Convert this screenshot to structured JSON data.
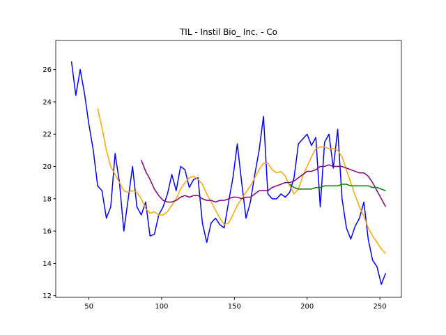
{
  "chart_data": {
    "type": "line",
    "title": "TIL - Instil Bio_ Inc. - Co",
    "x": [
      38,
      41,
      44,
      47,
      50,
      53,
      56,
      59,
      62,
      65,
      68,
      71,
      74,
      77,
      80,
      83,
      86,
      89,
      92,
      95,
      98,
      101,
      104,
      107,
      110,
      113,
      116,
      119,
      122,
      125,
      128,
      131,
      134,
      137,
      140,
      143,
      146,
      149,
      152,
      155,
      158,
      161,
      164,
      167,
      170,
      173,
      176,
      179,
      182,
      185,
      188,
      191,
      194,
      197,
      200,
      203,
      206,
      209,
      212,
      215,
      218,
      221,
      224,
      227,
      230,
      233,
      236,
      239,
      242,
      245,
      248,
      251,
      254
    ],
    "series": [
      {
        "color": "#0000ff",
        "values": [
          26.5,
          24.4,
          26.0,
          24.5,
          22.6,
          21.0,
          18.8,
          18.5,
          16.8,
          17.5,
          20.8,
          19.0,
          16.0,
          18.0,
          20.0,
          17.5,
          17.0,
          17.8,
          15.7,
          15.8,
          17.0,
          17.5,
          18.3,
          19.5,
          18.5,
          20.0,
          19.8,
          18.7,
          19.2,
          19.3,
          16.5,
          15.3,
          16.5,
          16.8,
          16.4,
          16.2,
          17.8,
          19.3,
          21.4,
          19.0,
          16.8,
          17.8,
          19.5,
          21.0,
          23.1,
          18.3,
          18.0,
          18.0,
          18.3,
          18.1,
          18.4,
          19.3,
          21.4,
          21.7,
          22.0,
          21.3,
          21.8,
          17.5,
          21.5,
          22.0,
          19.9,
          22.3,
          18.0,
          16.2,
          15.5,
          16.3,
          16.8,
          17.8,
          15.5,
          14.2,
          13.8,
          12.7,
          13.4
        ]
      },
      {
        "color": "#ffa500",
        "values": [
          null,
          null,
          null,
          null,
          null,
          null,
          23.6,
          22.4,
          21.0,
          20.0,
          19.5,
          19.0,
          18.5,
          18.4,
          18.5,
          18.4,
          18.0,
          17.4,
          17.1,
          17.2,
          17.0,
          17.0,
          17.2,
          17.6,
          18.0,
          18.6,
          19.0,
          19.3,
          19.4,
          19.2,
          18.9,
          18.3,
          17.8,
          17.3,
          16.8,
          16.4,
          16.5,
          17.0,
          17.6,
          18.0,
          18.4,
          18.8,
          19.3,
          19.8,
          20.2,
          20.2,
          19.8,
          19.6,
          19.7,
          19.4,
          18.8,
          18.3,
          18.6,
          19.4,
          20.0,
          20.6,
          21.1,
          21.2,
          21.2,
          21.1,
          21.1,
          21.0,
          20.6,
          19.8,
          19.0,
          18.2,
          17.5,
          16.9,
          16.2,
          15.7,
          15.3,
          14.9,
          14.6
        ]
      },
      {
        "color": "#800080",
        "values": [
          null,
          null,
          null,
          null,
          null,
          null,
          null,
          null,
          null,
          null,
          null,
          null,
          null,
          null,
          null,
          null,
          20.4,
          19.7,
          19.2,
          18.6,
          18.2,
          17.9,
          17.8,
          17.8,
          17.9,
          18.1,
          18.2,
          18.1,
          18.2,
          18.2,
          18.0,
          17.9,
          17.9,
          17.8,
          17.9,
          17.9,
          18.0,
          18.1,
          18.1,
          18.0,
          18.1,
          18.1,
          18.3,
          18.5,
          18.5,
          18.5,
          18.7,
          18.8,
          18.9,
          19.0,
          19.0,
          19.1,
          19.3,
          19.5,
          19.7,
          19.7,
          19.8,
          20.0,
          20.0,
          20.1,
          20.0,
          20.0,
          20.0,
          19.9,
          19.8,
          19.7,
          19.6,
          19.6,
          19.4,
          19.0,
          18.5,
          18.0,
          17.5
        ]
      },
      {
        "color": "#008000",
        "values": [
          null,
          null,
          null,
          null,
          null,
          null,
          null,
          null,
          null,
          null,
          null,
          null,
          null,
          null,
          null,
          null,
          null,
          null,
          null,
          null,
          null,
          null,
          null,
          null,
          null,
          null,
          null,
          null,
          null,
          null,
          null,
          null,
          null,
          null,
          null,
          null,
          null,
          null,
          null,
          null,
          null,
          null,
          null,
          null,
          null,
          null,
          null,
          null,
          null,
          null,
          18.9,
          18.7,
          18.6,
          18.6,
          18.6,
          18.6,
          18.7,
          18.7,
          18.8,
          18.8,
          18.8,
          18.8,
          18.9,
          18.9,
          18.8,
          18.8,
          18.8,
          18.8,
          18.8,
          18.7,
          18.7,
          18.6,
          18.5
        ]
      }
    ],
    "xlim": [
      27.2,
      264.8
    ],
    "xticks": [
      50,
      100,
      150,
      200,
      250
    ],
    "ylim": [
      11.9,
      27.8
    ],
    "yticks": [
      12,
      14,
      16,
      18,
      20,
      22,
      24,
      26
    ],
    "grid": false
  }
}
